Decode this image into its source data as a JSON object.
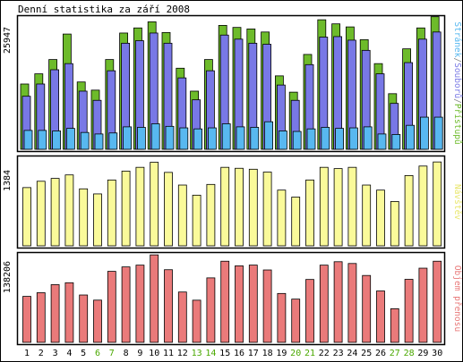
{
  "title": "Denní statistika za září 2008",
  "panels": {
    "top": {
      "ytick": "25947",
      "legend": [
        {
          "text": "Stránek",
          "color": "#58b8f0"
        },
        {
          "text": "/",
          "color": "#888888"
        },
        {
          "text": "Souborů",
          "color": "#7a7ae6"
        },
        {
          "text": "/",
          "color": "#888888"
        },
        {
          "text": "Přístupů",
          "color": "#6dbb2a"
        }
      ]
    },
    "mid": {
      "ytick": "1384",
      "legend": [
        {
          "text": "Návštěv",
          "color": "#e8e66a"
        }
      ]
    },
    "bot": {
      "ytick": "138206",
      "legend": [
        {
          "text": "Objem přenosu",
          "color": "#e87878"
        }
      ]
    }
  },
  "colors": {
    "hits": "#6dbb2a",
    "files": "#7878e6",
    "pages": "#58b8f0",
    "visits": "#fafa9a",
    "kbytes": "#ea7a7a",
    "weekday_label": "#000000",
    "weekend_label": "#4aa800"
  },
  "chart_data": [
    {
      "type": "bar",
      "title": "Denní statistika za září 2008",
      "x": [
        1,
        2,
        3,
        4,
        5,
        6,
        7,
        8,
        9,
        10,
        11,
        12,
        13,
        14,
        15,
        16,
        17,
        18,
        19,
        20,
        21,
        22,
        23,
        24,
        25,
        26,
        27,
        28,
        29,
        30
      ],
      "weekend_days": [
        6,
        7,
        13,
        14,
        20,
        21,
        27,
        28
      ],
      "ylim": [
        0,
        25947
      ],
      "series": [
        {
          "name": "Přístupů",
          "values": [
            12800,
            14800,
            17600,
            22600,
            13200,
            11600,
            17600,
            22800,
            23800,
            25000,
            22900,
            15900,
            11400,
            17600,
            24300,
            23900,
            23600,
            23000,
            14400,
            11200,
            18600,
            25400,
            24600,
            24000,
            21500,
            16800,
            10900,
            19700,
            23800,
            26000
          ]
        },
        {
          "name": "Souborů",
          "values": [
            10400,
            12800,
            15600,
            16800,
            11400,
            9600,
            15400,
            20800,
            21300,
            22800,
            20800,
            14000,
            9700,
            15400,
            22400,
            21600,
            20800,
            20600,
            12600,
            9600,
            16600,
            22000,
            22100,
            21400,
            19400,
            14800,
            9000,
            17000,
            21600,
            23000
          ]
        },
        {
          "name": "Stránek",
          "values": [
            3700,
            3700,
            3600,
            4100,
            3300,
            3000,
            3200,
            4400,
            4300,
            5000,
            4500,
            4200,
            4000,
            4200,
            5000,
            4400,
            4300,
            5400,
            3600,
            3500,
            4000,
            4300,
            4100,
            4200,
            4400,
            3000,
            2900,
            4700,
            6300,
            6300
          ]
        }
      ]
    },
    {
      "type": "bar",
      "x": [
        1,
        2,
        3,
        4,
        5,
        6,
        7,
        8,
        9,
        10,
        11,
        12,
        13,
        14,
        15,
        16,
        17,
        18,
        19,
        20,
        21,
        22,
        23,
        24,
        25,
        26,
        27,
        28,
        29,
        30
      ],
      "ylim": [
        0,
        1384
      ],
      "series": [
        {
          "name": "Návštěv",
          "values": [
            920,
            1020,
            1065,
            1120,
            900,
            820,
            1040,
            1180,
            1240,
            1320,
            1160,
            960,
            800,
            970,
            1240,
            1225,
            1210,
            1165,
            880,
            770,
            1040,
            1240,
            1220,
            1240,
            960,
            880,
            700,
            1110,
            1260,
            1325
          ]
        }
      ]
    },
    {
      "type": "bar",
      "x": [
        1,
        2,
        3,
        4,
        5,
        6,
        7,
        8,
        9,
        10,
        11,
        12,
        13,
        14,
        15,
        16,
        17,
        18,
        19,
        20,
        21,
        22,
        23,
        24,
        25,
        26,
        27,
        28,
        29,
        30
      ],
      "ylim": [
        0,
        138206
      ],
      "series": [
        {
          "name": "Objem přenosu",
          "values": [
            72500,
            78300,
            91000,
            94000,
            74700,
            66600,
            112000,
            119000,
            121800,
            138000,
            114600,
            79400,
            66500,
            101700,
            128000,
            120700,
            121900,
            114200,
            77100,
            68200,
            99200,
            121800,
            127200,
            124400,
            105500,
            81100,
            53000,
            99400,
            117000,
            128000
          ]
        }
      ]
    }
  ]
}
